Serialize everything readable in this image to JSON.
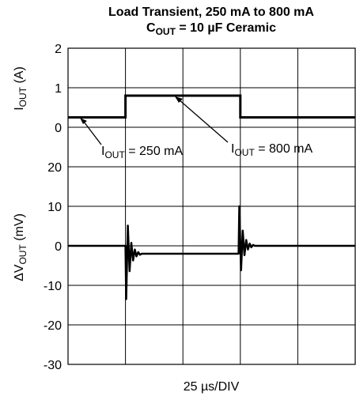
{
  "chart_data": {
    "type": "line",
    "title": {
      "line1": "Load Transient, 250 mA to 800 mA",
      "line2_main": "C",
      "line2_sub": "OUT",
      "line2_rest": " = 10 µF Ceramic"
    },
    "xlabel": "25 µs/DIV",
    "x_divisions": 5,
    "panels": {
      "current": {
        "ylabel_main": "I",
        "ylabel_sub": "OUT",
        "ylabel_rest": " (A)",
        "yticks": [
          "2",
          "1",
          "0"
        ],
        "ylim": [
          0,
          2
        ],
        "series": [
          {
            "points": [
              [
                0,
                0.25
              ],
              [
                1.0,
                0.25
              ],
              [
                1.0,
                0.8
              ],
              [
                3.0,
                0.8
              ],
              [
                3.0,
                0.25
              ],
              [
                5.0,
                0.25
              ]
            ]
          }
        ],
        "annotations": [
          {
            "main": "I",
            "sub": "OUT",
            "rest": " = 250 mA"
          },
          {
            "main": "I",
            "sub": "OUT",
            "rest": " = 800 mA"
          }
        ]
      },
      "voltage": {
        "ylabel_main": "ΔV",
        "ylabel_sub": "OUT",
        "ylabel_rest": " (mV)",
        "yticks": [
          "20",
          "10",
          "0",
          "-10",
          "-20",
          "-30"
        ],
        "ylim": [
          -30,
          20
        ],
        "baseline_before": 0,
        "baseline_mid": -2,
        "baseline_after": 0,
        "step1_time": 1.0,
        "step2_time": 2.97,
        "ring1": {
          "first_peak": -11.5,
          "decay": 0.62,
          "period": 0.06,
          "cycles": 9
        },
        "ring2": {
          "first_peak": 10,
          "decay": 0.62,
          "period": 0.06,
          "cycles": 9
        }
      }
    },
    "grid": true
  }
}
